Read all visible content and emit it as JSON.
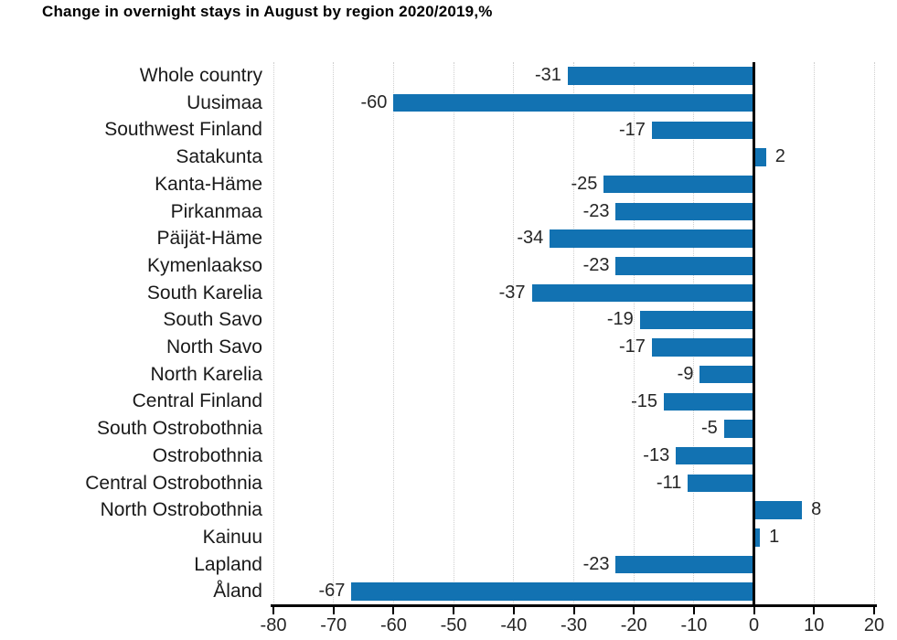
{
  "title": "Change in overnight stays in August by region 2020/2019,%",
  "chart_data": {
    "type": "bar",
    "orientation": "horizontal",
    "title": "Change in overnight stays in August by region 2020/2019,%",
    "categories": [
      "Whole country",
      "Uusimaa",
      "Southwest Finland",
      "Satakunta",
      "Kanta-Häme",
      "Pirkanmaa",
      "Päijät-Häme",
      "Kymenlaakso",
      "South Karelia",
      "South Savo",
      "North Savo",
      "North Karelia",
      "Central Finland",
      "South Ostrobothnia",
      "Ostrobothnia",
      "Central Ostrobothnia",
      "North Ostrobothnia",
      "Kainuu",
      "Lapland",
      "Åland"
    ],
    "values": [
      -31,
      -60,
      -17,
      2,
      -25,
      -23,
      -34,
      -23,
      -37,
      -19,
      -17,
      -9,
      -15,
      -5,
      -13,
      -11,
      8,
      1,
      -23,
      -67
    ],
    "xlabel": "",
    "ylabel": "",
    "xlim": [
      -80,
      20
    ],
    "xticks": [
      -80,
      -70,
      -60,
      -50,
      -40,
      -30,
      -20,
      -10,
      0,
      10,
      20
    ],
    "grid": "vertical-dotted",
    "legend": "none",
    "data_labels": "outside-end",
    "bar_color": "#1272b2",
    "gridline_color": "#cfcfcf",
    "zero_line_color": "#000000",
    "axis_color": "#000000",
    "text_color": "#262626"
  }
}
